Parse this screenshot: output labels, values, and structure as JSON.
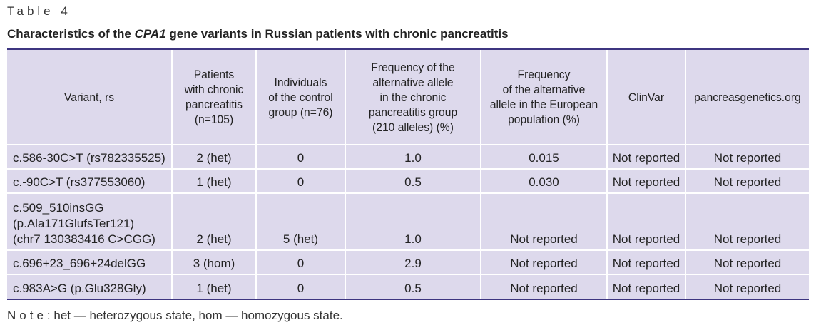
{
  "table_label": "Table 4",
  "title": {
    "prefix": "Characteristics of the ",
    "gene": "CPA1",
    "suffix": " gene variants in Russian patients with chronic pancreatitis"
  },
  "columns": [
    "Variant, rs",
    "Patients with chronic pancreatitis (n=105)",
    "Individuals of the control group (n=76)",
    "Frequency of the alternative allele in the chronic pancreatitis group (210 alleles) (%)",
    "Frequency of the alternative allele in the European population (%)",
    "ClinVar",
    "pancreasgenetics.org"
  ],
  "header_lines": {
    "c0": [
      "Variant, rs"
    ],
    "c1": [
      "Patients",
      "with chronic",
      "pancreatitis",
      "(n=105)"
    ],
    "c2": [
      "Individuals",
      "of the control",
      "group (n=76)"
    ],
    "c3": [
      "Frequency of the",
      "alternative allele",
      "in the chronic",
      "pancreatitis group",
      "(210 alleles) (%)"
    ],
    "c4": [
      "Frequency",
      "of the alternative",
      "allele in the European",
      "population (%)"
    ],
    "c5": [
      "ClinVar"
    ],
    "c6": [
      "pancreasgenetics.org"
    ]
  },
  "rows": [
    {
      "variant": [
        "c.586-30C>T (rs782335525)"
      ],
      "patients": "2 (het)",
      "control": "0",
      "freq_cp": "1.0",
      "freq_eu": "0.015",
      "clinvar": "Not reported",
      "pg": "Not reported"
    },
    {
      "variant": [
        "c.-90C>T (rs377553060)"
      ],
      "patients": "1 (het)",
      "control": "0",
      "freq_cp": "0.5",
      "freq_eu": "0.030",
      "clinvar": "Not reported",
      "pg": "Not reported"
    },
    {
      "variant": [
        "c.509_510insGG",
        "(p.Ala171GlufsTer121)",
        "(chr7 130383416 C>CGG)"
      ],
      "patients": "2 (het)",
      "control": "5 (het)",
      "freq_cp": "1.0",
      "freq_eu": "Not reported",
      "clinvar": "Not reported",
      "pg": "Not reported"
    },
    {
      "variant": [
        "c.696+23_696+24delGG"
      ],
      "patients": "3 (hom)",
      "control": "0",
      "freq_cp": "2.9",
      "freq_eu": "Not reported",
      "clinvar": "Not reported",
      "pg": "Not reported"
    },
    {
      "variant": [
        "c.983A>G (p.Glu328Gly)"
      ],
      "patients": "1 (het)",
      "control": "0",
      "freq_cp": "0.5",
      "freq_eu": "Not reported",
      "clinvar": "Not reported",
      "pg": "Not reported"
    }
  ],
  "note": {
    "label": "Note",
    "text": ": het — heterozygous state, hom — homozygous state."
  }
}
